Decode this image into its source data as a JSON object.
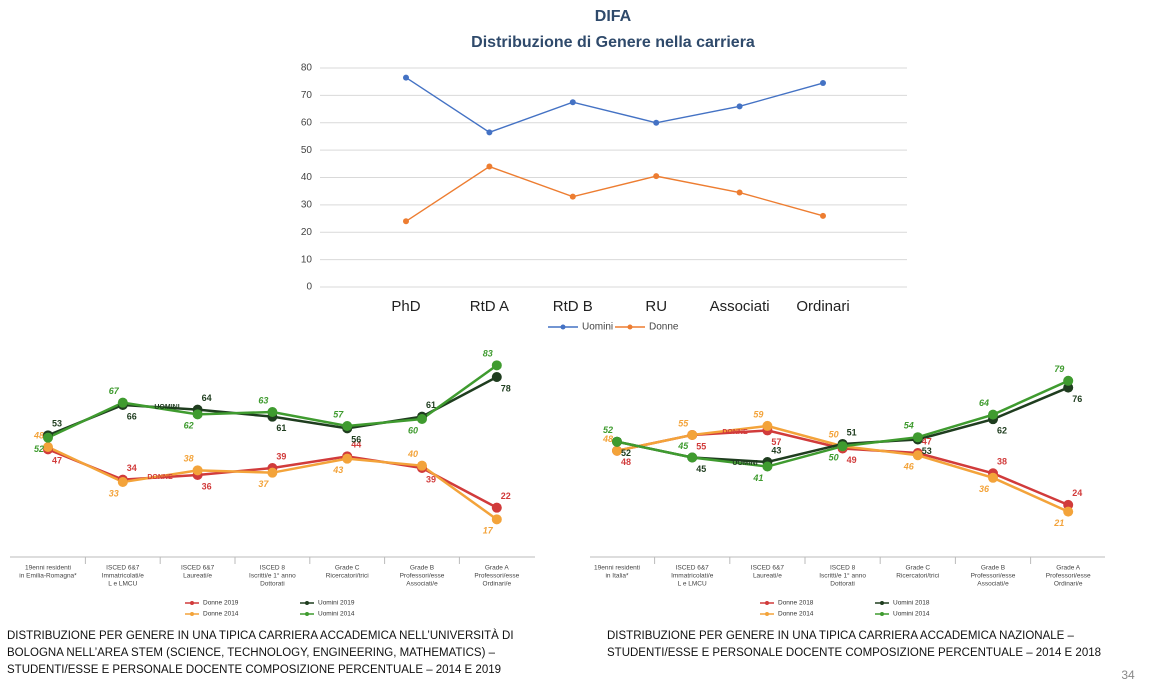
{
  "chart_data": [
    {
      "type": "line",
      "title": "DIFA",
      "subtitle": "Distribuzione di Genere nella carriera",
      "categories": [
        "PhD",
        "RtD A",
        "RtD B",
        "RU",
        "Associati",
        "Ordinari"
      ],
      "series": [
        {
          "name": "Uomini",
          "color": "#4472c4",
          "values": [
            76.5,
            56.5,
            67.5,
            60,
            66,
            74.5
          ]
        },
        {
          "name": "Donne",
          "color": "#ed7d31",
          "values": [
            24,
            44,
            33,
            40.5,
            34.5,
            26
          ]
        }
      ],
      "ylim": [
        0,
        80
      ],
      "yticks": [
        0,
        10,
        20,
        30,
        40,
        50,
        60,
        70,
        80
      ],
      "grid": true,
      "legend": "bottom"
    },
    {
      "type": "line",
      "categories": [
        [
          "19enni residenti",
          "in Emilia-Romagna*"
        ],
        [
          "ISCED 6&7",
          "Immatricolati/e",
          "L e LMCU"
        ],
        [
          "ISCED 6&7",
          "Laureati/e"
        ],
        [
          "ISCED 8",
          "Iscritti/e 1° anno",
          "Dottorati"
        ],
        [
          "Grade C",
          "Ricercatori/trici"
        ],
        [
          "Grade B",
          "Professori/esse",
          "Associati/e"
        ],
        [
          "Grade A",
          "Professori/esse",
          "Ordinari/e"
        ]
      ],
      "series": [
        {
          "name": "Donne 2019",
          "color": "#d13b3b",
          "values": [
            47,
            34,
            36,
            39,
            44,
            39,
            22
          ]
        },
        {
          "name": "Donne 2014",
          "color": "#f3a33a",
          "values": [
            48,
            33,
            38,
            37,
            43,
            40,
            17
          ]
        },
        {
          "name": "Uomini 2019",
          "color": "#1f3d1f",
          "values": [
            53,
            66,
            64,
            61,
            56,
            61,
            78
          ]
        },
        {
          "name": "Uomini 2014",
          "color": "#3f9b2f",
          "values": [
            52,
            67,
            62,
            63,
            57,
            60,
            83
          ]
        }
      ],
      "ylim": [
        0,
        90
      ],
      "grid": false,
      "legend": "bottom",
      "annotations": [
        "UOMINI",
        "DONNE"
      ]
    },
    {
      "type": "line",
      "categories": [
        [
          "19enni residenti",
          "in Italia*"
        ],
        [
          "ISCED 6&7",
          "Immatricolati/e",
          "L e LMCU"
        ],
        [
          "ISCED 6&7",
          "Laureati/e"
        ],
        [
          "ISCED 8",
          "Iscritti/e 1° anno",
          "Dottorati"
        ],
        [
          "Grade C",
          "Ricercatori/trici"
        ],
        [
          "Grade B",
          "Professori/esse",
          "Associati/e"
        ],
        [
          "Grade A",
          "Professori/esse",
          "Ordinari/e"
        ]
      ],
      "series": [
        {
          "name": "Donne 2018",
          "color": "#d13b3b",
          "values": [
            48,
            55,
            57,
            49,
            47,
            38,
            24
          ]
        },
        {
          "name": "Donne 2014",
          "color": "#f3a33a",
          "values": [
            48,
            55,
            59,
            50,
            46,
            36,
            21
          ]
        },
        {
          "name": "Uomini 2018",
          "color": "#1f3d1f",
          "values": [
            52,
            45,
            43,
            51,
            53,
            62,
            76
          ]
        },
        {
          "name": "Uomini 2014",
          "color": "#3f9b2f",
          "values": [
            52,
            45,
            41,
            50,
            54,
            64,
            79
          ]
        }
      ],
      "ylim": [
        0,
        90
      ],
      "grid": false,
      "legend": "bottom",
      "annotations": [
        "DONNE",
        "UOMINI"
      ]
    }
  ],
  "captions": [
    [
      "DISTRIBUZIONE PER GENERE IN UNA TIPICA CARRIERA ACCADEMICA NELL’UNIVERSITÀ DI",
      "BOLOGNA NELL’AREA STEM (SCIENCE, TECHNOLOGY, ENGINEERING, MATHEMATICS) –",
      "STUDENTI/ESSE E PERSONALE DOCENTE COMPOSIZIONE PERCENTUALE – 2014 E 2019"
    ],
    [
      "DISTRIBUZIONE PER GENERE IN UNA TIPICA CARRIERA ACCADEMICA NAZIONALE –",
      "STUDENTI/ESSE E PERSONALE DOCENTE COMPOSIZIONE PERCENTUALE – 2014 E 2018"
    ]
  ],
  "page_number": 34
}
